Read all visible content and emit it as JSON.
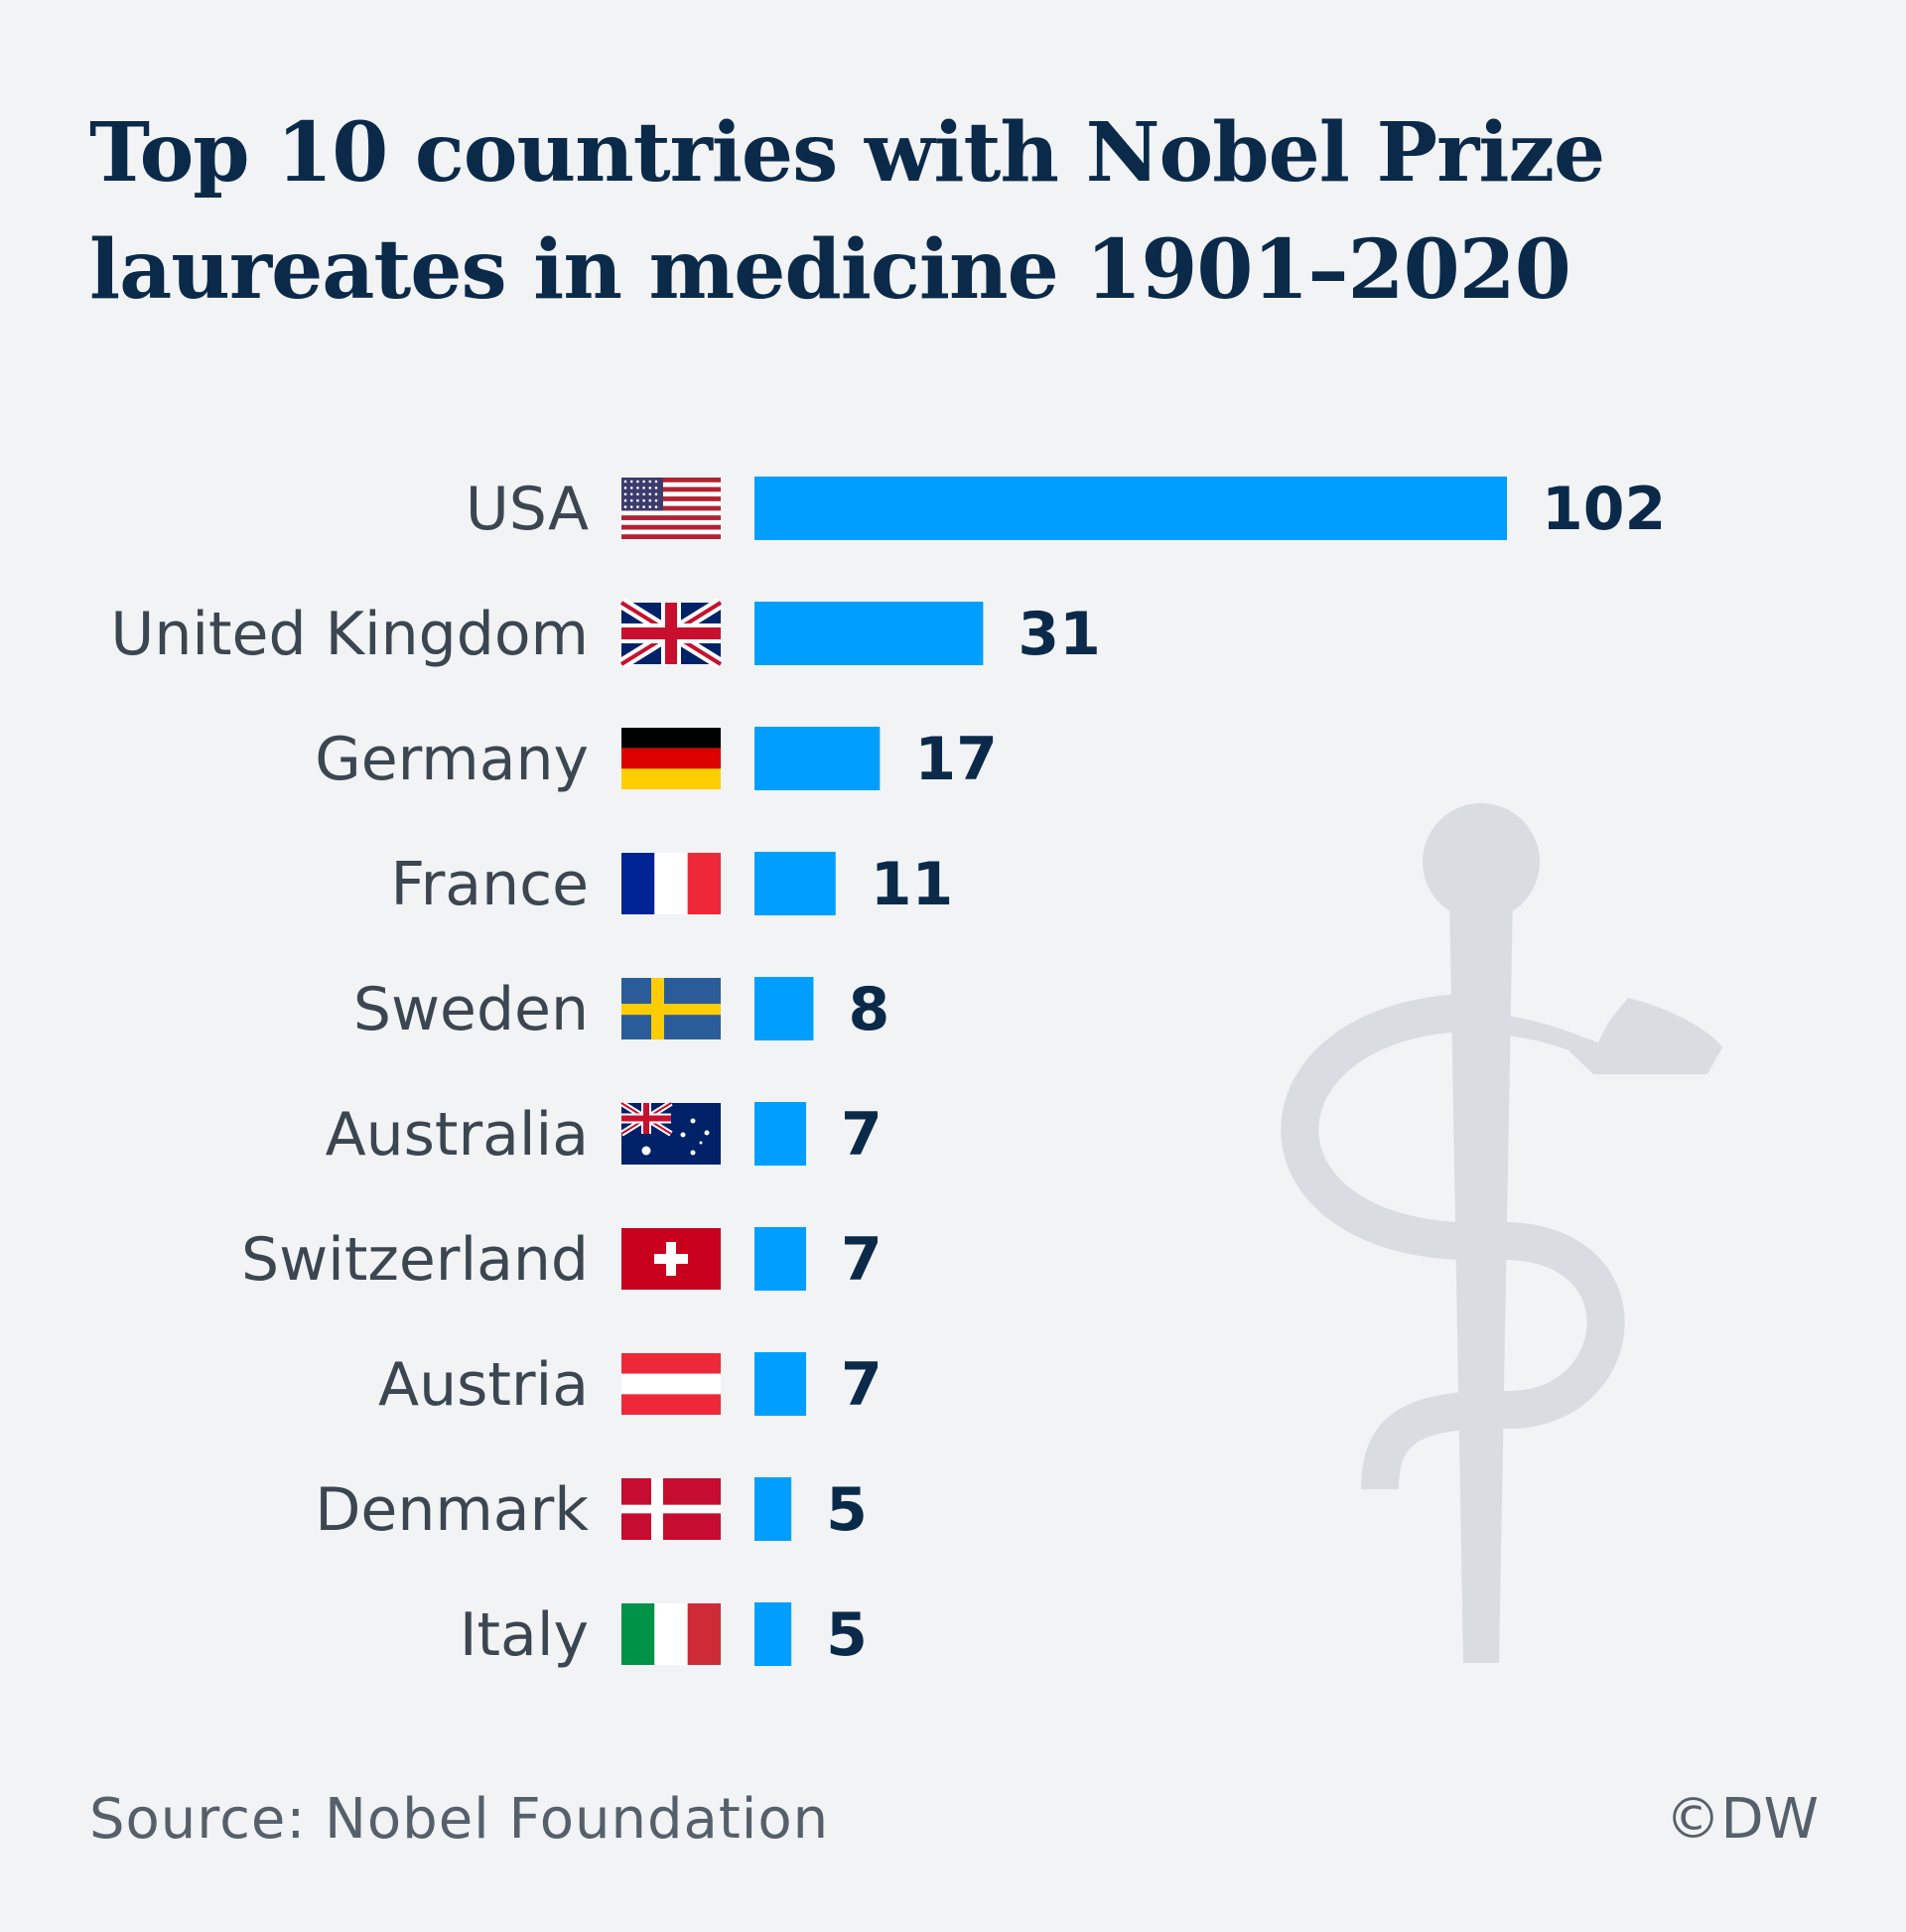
{
  "title": "Top 10 countries with Nobel Prize laureates in medicine 1901–2020",
  "source": "Source: Nobel Foundation",
  "credit": "©DW",
  "colors": {
    "bar": "#009fff",
    "background": "#f1f3f5",
    "watermark": "#d9dde1"
  },
  "watermark_icon": "rod-of-asclepius-icon",
  "chart_data": {
    "type": "bar",
    "orientation": "horizontal",
    "categories": [
      "USA",
      "United Kingdom",
      "Germany",
      "France",
      "Sweden",
      "Australia",
      "Switzerland",
      "Austria",
      "Denmark",
      "Italy"
    ],
    "flags": [
      "flag-usa-icon",
      "flag-uk-icon",
      "flag-germany-icon",
      "flag-france-icon",
      "flag-sweden-icon",
      "flag-australia-icon",
      "flag-switzerland-icon",
      "flag-austria-icon",
      "flag-denmark-icon",
      "flag-italy-icon"
    ],
    "values": [
      102,
      31,
      17,
      11,
      8,
      7,
      7,
      7,
      5,
      5
    ],
    "data_labels": [
      "102",
      "31",
      "17",
      "11",
      "8",
      "7",
      "7",
      "7",
      "5",
      "5"
    ],
    "xlim": [
      0,
      102
    ],
    "grid": false,
    "legend": "none"
  }
}
